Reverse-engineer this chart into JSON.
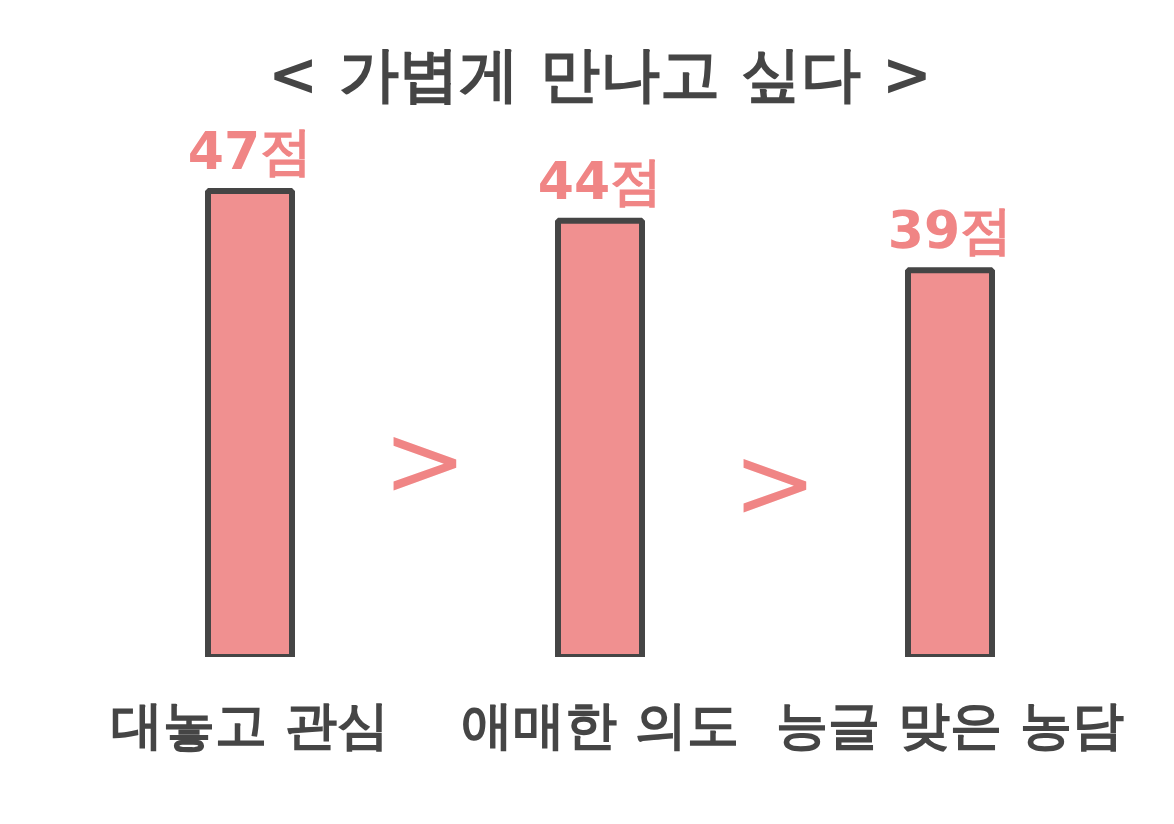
{
  "chart_data": {
    "type": "bar",
    "title": "< 가볍게 만나고 싶다 >",
    "categories": [
      "대놓고 관심",
      "애매한 의도",
      "능글 맞은 농담"
    ],
    "values": [
      47,
      44,
      39
    ],
    "value_labels": [
      "47점",
      "44점",
      "39점"
    ],
    "color": "#f09090",
    "grid": false,
    "tick_labels": "x",
    "annotations": [
      ">",
      ">"
    ]
  }
}
